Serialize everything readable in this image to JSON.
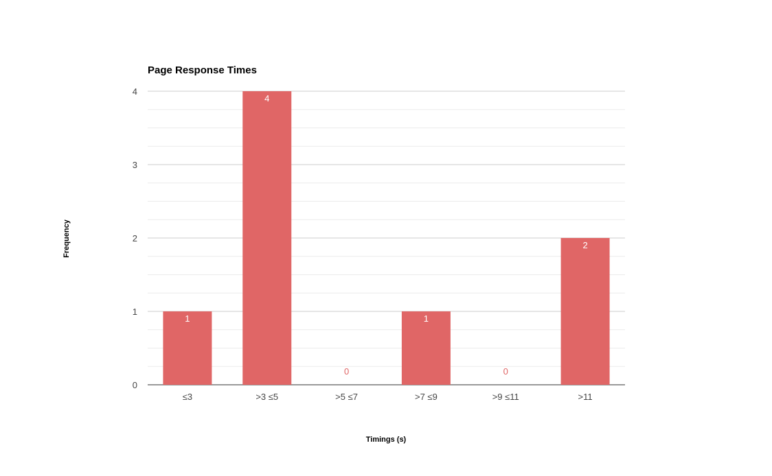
{
  "chart_data": {
    "type": "bar",
    "title": "Page Response Times",
    "xlabel": "Timings (s)",
    "ylabel": "Frequency",
    "categories": [
      "≤3",
      ">3 ≤5",
      ">5 ≤7",
      ">7 ≤9",
      ">9 ≤11",
      ">11"
    ],
    "values": [
      1,
      4,
      0,
      1,
      0,
      2
    ],
    "data_labels": [
      "1",
      "4",
      "0",
      "1",
      "0",
      "2"
    ],
    "ylim": [
      0,
      4
    ],
    "yticks": [
      "0",
      "1",
      "2",
      "3",
      "4"
    ],
    "grid": true,
    "legend": "none",
    "colors": {
      "bar": "#e06666",
      "label_inside": "#ffffff",
      "label_outside": "#e06666",
      "major_grid": "#cccccc",
      "minor_grid": "#ebebeb",
      "baseline": "#333333"
    }
  }
}
